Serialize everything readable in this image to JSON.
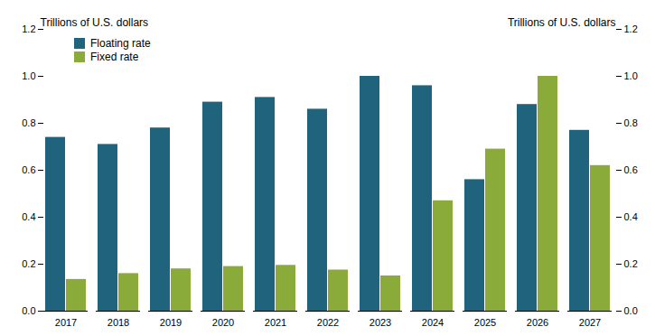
{
  "chart_data": {
    "type": "bar",
    "categories": [
      "2017",
      "2018",
      "2019",
      "2020",
      "2021",
      "2022",
      "2023",
      "2024",
      "2025",
      "2026",
      "2027"
    ],
    "series": [
      {
        "name": "Floating rate",
        "color": "#1f637d",
        "values": [
          0.74,
          0.71,
          0.78,
          0.89,
          0.91,
          0.86,
          1.0,
          0.96,
          0.56,
          0.88,
          0.77
        ]
      },
      {
        "name": "Fixed rate",
        "color": "#8aaa3a",
        "values": [
          0.135,
          0.16,
          0.18,
          0.19,
          0.195,
          0.175,
          0.15,
          0.47,
          0.69,
          1.0,
          0.62
        ]
      }
    ],
    "ylabel": "Trillions of U.S. dollars",
    "y2label": "Trillions of U.S. dollars",
    "ylim": [
      0,
      1.2
    ],
    "yticks": [
      {
        "value": 0,
        "label": "0.0"
      },
      0.2,
      0.4,
      0.6,
      0.8,
      {
        "value": 1,
        "label": "1.0"
      },
      1.2
    ],
    "y2lim": [
      0,
      1.2
    ],
    "y2ticks": [
      {
        "value": 0,
        "label": "0.0"
      },
      0.2,
      0.4,
      0.6,
      0.8,
      {
        "value": 1,
        "label": "1.0"
      },
      1.2
    ],
    "legend": "upper left",
    "grid": false
  }
}
